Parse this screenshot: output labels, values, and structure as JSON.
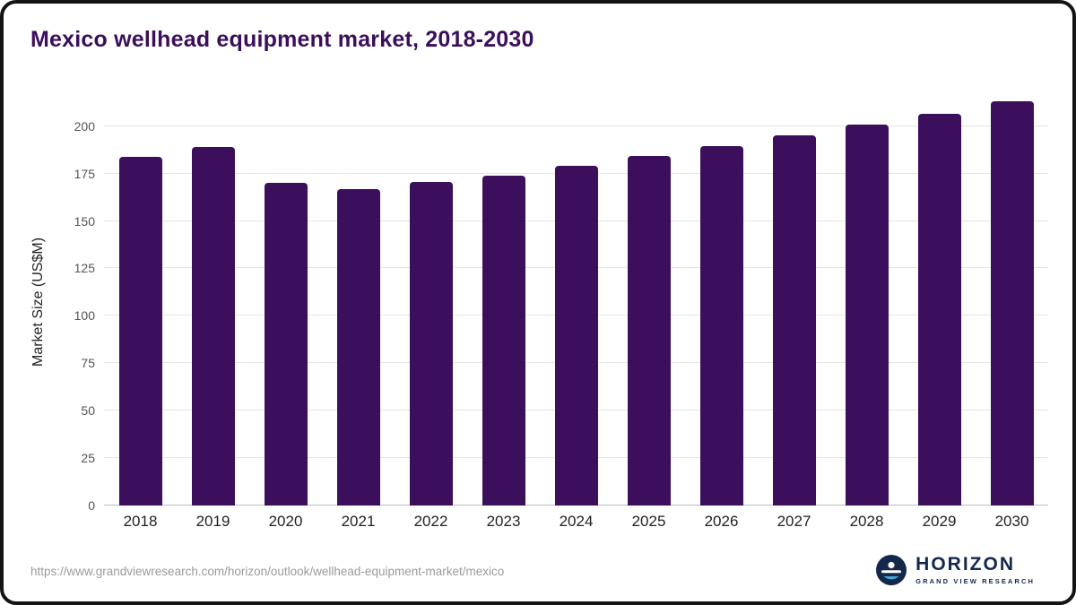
{
  "title": "Mexico wellhead equipment market, 2018-2030",
  "chart_data": {
    "type": "bar",
    "categories": [
      "2018",
      "2019",
      "2020",
      "2021",
      "2022",
      "2023",
      "2024",
      "2025",
      "2026",
      "2027",
      "2028",
      "2029",
      "2030"
    ],
    "values": [
      184,
      189,
      170,
      167,
      170.5,
      174,
      179,
      184.5,
      189.5,
      195,
      201,
      206.5,
      213
    ],
    "title": "Mexico wellhead equipment market, 2018-2030",
    "xlabel": "",
    "ylabel": "Market Size (US$M)",
    "ylim": [
      0,
      215
    ],
    "yticks": [
      0,
      25,
      50,
      75,
      100,
      125,
      150,
      175,
      200
    ],
    "grid": true,
    "legend": "none",
    "bar_color": "#3b0f5c"
  },
  "footer": {
    "source_url": "https://www.grandviewresearch.com/horizon/outlook/wellhead-equipment-market/mexico",
    "logo": {
      "name": "HORIZON",
      "subtitle": "GRAND VIEW RESEARCH",
      "icon_color": "#14284b"
    }
  }
}
